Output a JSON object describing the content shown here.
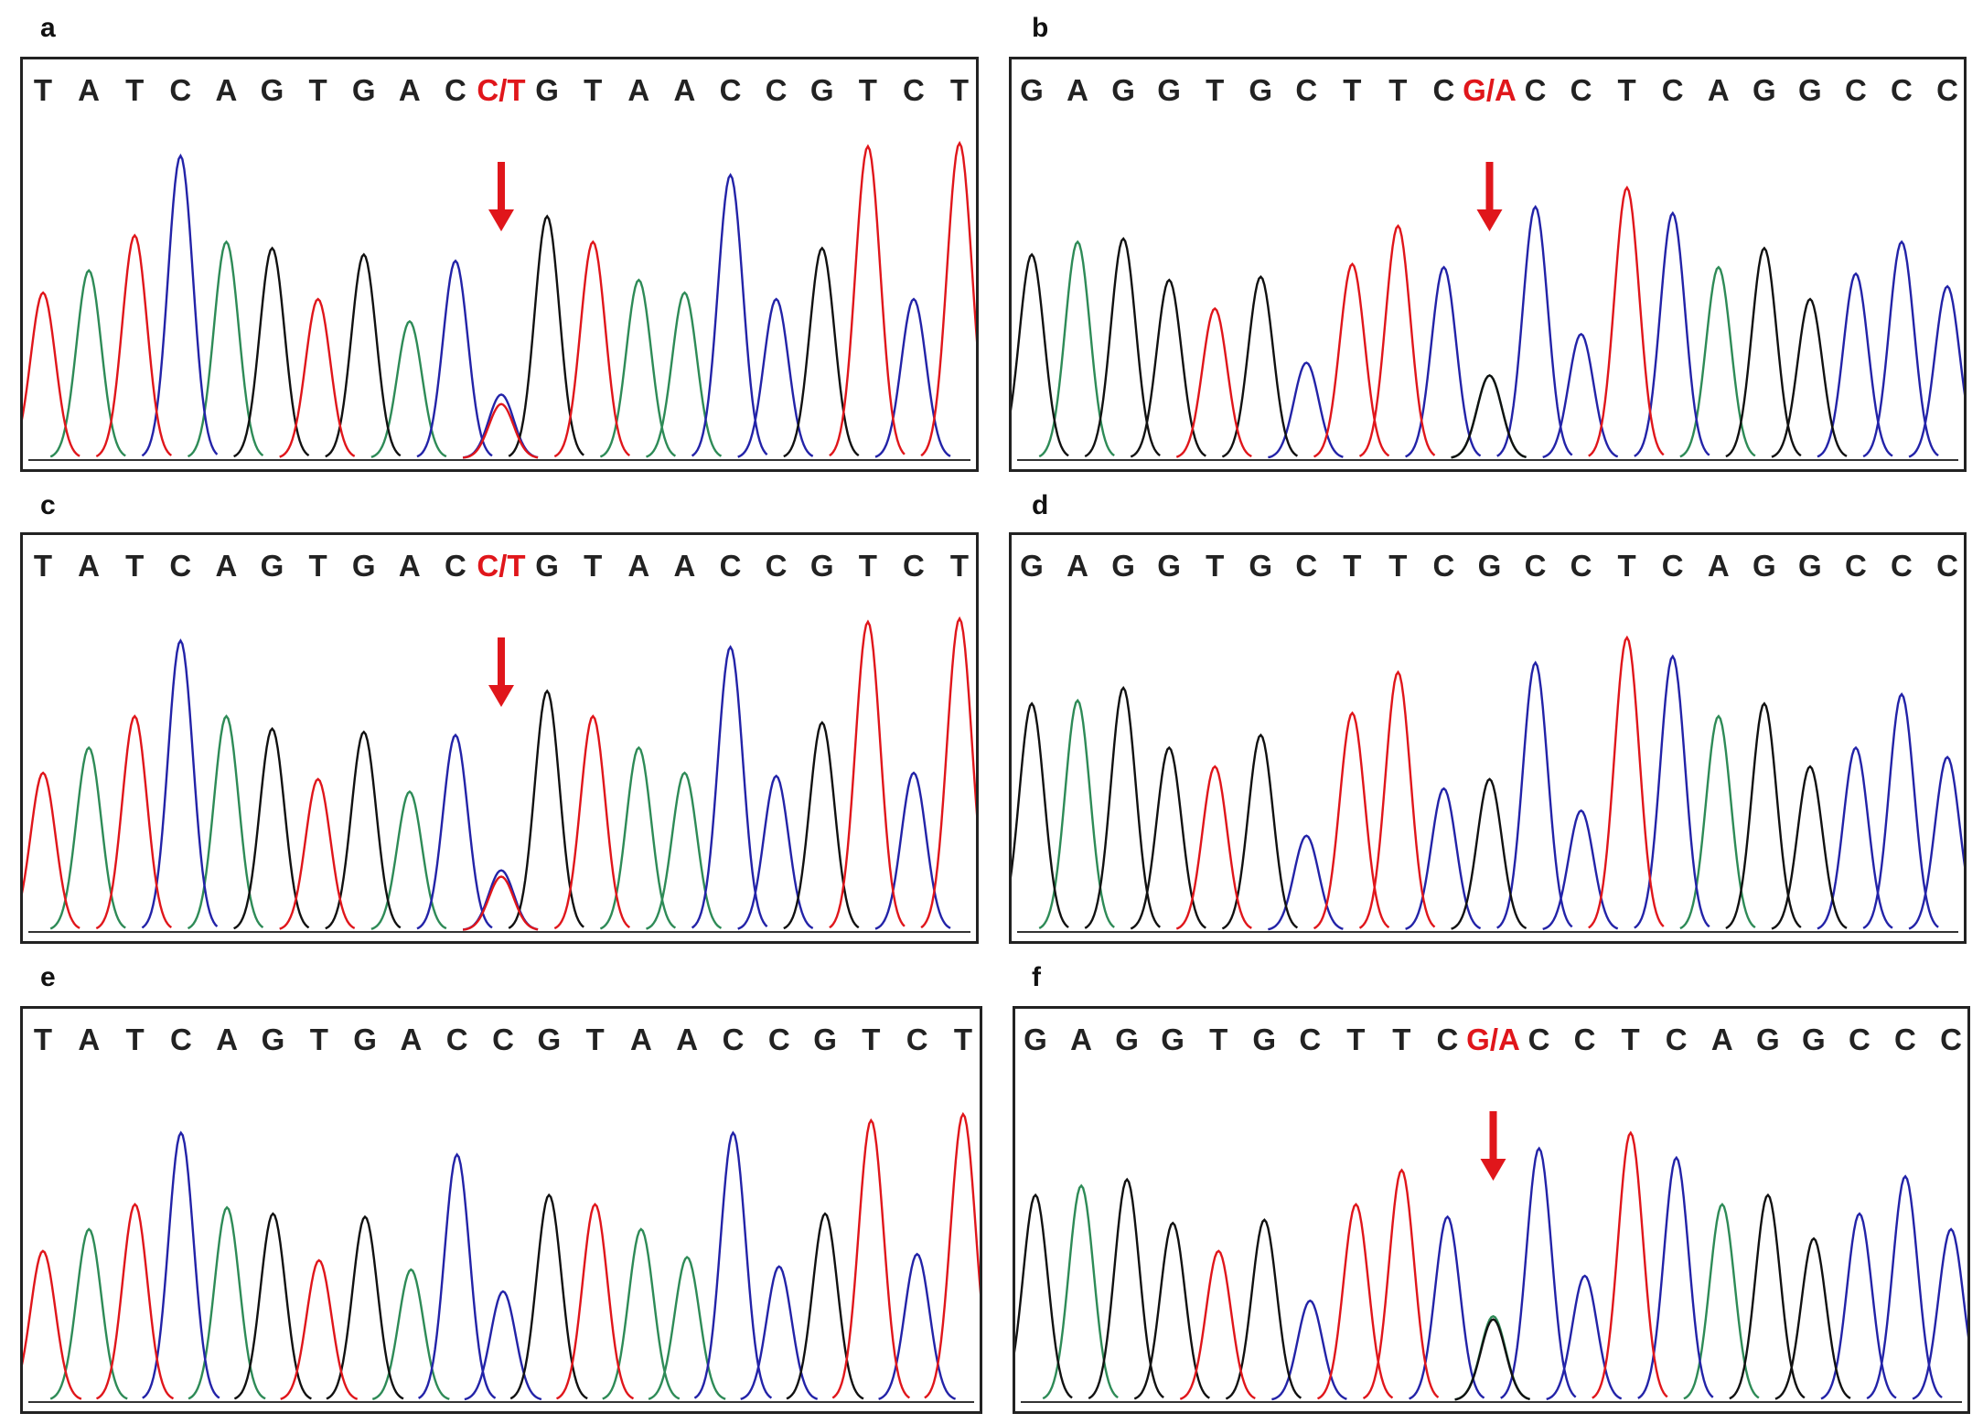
{
  "figure": {
    "panels": [
      {
        "label": "a",
        "bases": [
          "T",
          "A",
          "T",
          "C",
          "A",
          "G",
          "T",
          "G",
          "A",
          "C",
          "C/T",
          "G",
          "T",
          "A",
          "A",
          "C",
          "C",
          "G",
          "T",
          "C",
          "T"
        ],
        "het_index": 10,
        "arrow": true
      },
      {
        "label": "b",
        "bases": [
          "G",
          "A",
          "G",
          "G",
          "T",
          "G",
          "C",
          "T",
          "T",
          "C",
          "G/A",
          "C",
          "C",
          "T",
          "C",
          "A",
          "G",
          "G",
          "C",
          "C",
          "C"
        ],
        "het_index": 10,
        "arrow": true
      },
      {
        "label": "c",
        "bases": [
          "T",
          "A",
          "T",
          "C",
          "A",
          "G",
          "T",
          "G",
          "A",
          "C",
          "C/T",
          "G",
          "T",
          "A",
          "A",
          "C",
          "C",
          "G",
          "T",
          "C",
          "T"
        ],
        "het_index": 10,
        "arrow": true
      },
      {
        "label": "d",
        "bases": [
          "G",
          "A",
          "G",
          "G",
          "T",
          "G",
          "C",
          "T",
          "T",
          "C",
          "G",
          "C",
          "C",
          "T",
          "C",
          "A",
          "G",
          "G",
          "C",
          "C",
          "C"
        ],
        "het_index": -1,
        "arrow": false
      },
      {
        "label": "e",
        "bases": [
          "T",
          "A",
          "T",
          "C",
          "A",
          "G",
          "T",
          "G",
          "A",
          "C",
          "C",
          "G",
          "T",
          "A",
          "A",
          "C",
          "C",
          "G",
          "T",
          "C",
          "T"
        ],
        "het_index": -1,
        "arrow": false
      },
      {
        "label": "f",
        "bases": [
          "G",
          "A",
          "G",
          "G",
          "T",
          "G",
          "C",
          "T",
          "T",
          "C",
          "G/A",
          "C",
          "C",
          "T",
          "C",
          "A",
          "G",
          "G",
          "C",
          "C",
          "C"
        ],
        "het_index": 10,
        "arrow": true
      }
    ]
  },
  "colors": {
    "A": "#2e8b57",
    "C": "#2323a8",
    "G": "#111111",
    "T": "#e0161b",
    "highlight": "#e0161b"
  },
  "chart_data": [
    {
      "type": "chromatogram",
      "title": "a",
      "sequence": "TATCAGTGAC[C/T]GTAACCGTCT",
      "peak_heights": [
        0.52,
        0.59,
        0.7,
        0.95,
        0.68,
        0.66,
        0.5,
        0.64,
        0.43,
        0.62,
        0.2,
        0.76,
        0.68,
        0.56,
        0.52,
        0.89,
        0.5,
        0.66,
        0.98,
        0.5,
        0.99
      ],
      "secondary_heights": [
        0,
        0,
        0,
        0,
        0,
        0,
        0,
        0,
        0,
        0,
        0.17,
        0,
        0,
        0,
        0,
        0,
        0,
        0,
        0,
        0,
        0
      ]
    },
    {
      "type": "chromatogram",
      "title": "b",
      "sequence": "GAGGTGCTTC[G/A]CCTCAGGCCC",
      "peak_heights": [
        0.64,
        0.68,
        0.69,
        0.56,
        0.47,
        0.57,
        0.3,
        0.61,
        0.73,
        0.6,
        0.26,
        0.79,
        0.39,
        0.85,
        0.77,
        0.6,
        0.66,
        0.5,
        0.58,
        0.68,
        0.54
      ],
      "secondary_heights": [
        0,
        0,
        0,
        0,
        0,
        0,
        0,
        0,
        0,
        0,
        0.26,
        0,
        0,
        0,
        0,
        0,
        0,
        0,
        0,
        0,
        0
      ]
    },
    {
      "type": "chromatogram",
      "title": "c",
      "sequence": "TATCAGTGAC[C/T]GTAACCGTCT",
      "peak_heights": [
        0.5,
        0.58,
        0.68,
        0.92,
        0.68,
        0.64,
        0.48,
        0.63,
        0.44,
        0.62,
        0.19,
        0.76,
        0.68,
        0.58,
        0.5,
        0.9,
        0.49,
        0.66,
        0.98,
        0.5,
        0.99
      ],
      "secondary_heights": [
        0,
        0,
        0,
        0,
        0,
        0,
        0,
        0,
        0,
        0,
        0.17,
        0,
        0,
        0,
        0,
        0,
        0,
        0,
        0,
        0,
        0
      ]
    },
    {
      "type": "chromatogram",
      "title": "d",
      "sequence": "GAGGTGCTTCGCCTCAGGCCC",
      "peak_heights": [
        0.72,
        0.73,
        0.77,
        0.58,
        0.52,
        0.62,
        0.3,
        0.69,
        0.82,
        0.45,
        0.48,
        0.85,
        0.38,
        0.93,
        0.87,
        0.68,
        0.72,
        0.52,
        0.58,
        0.75,
        0.55
      ],
      "secondary_heights": [
        0,
        0,
        0,
        0,
        0,
        0,
        0,
        0,
        0,
        0,
        0,
        0,
        0,
        0,
        0,
        0,
        0,
        0,
        0,
        0,
        0
      ]
    },
    {
      "type": "chromatogram",
      "title": "e",
      "sequence": "TATCAGTGACCGTAACCGTCT",
      "peak_heights": [
        0.48,
        0.55,
        0.63,
        0.86,
        0.62,
        0.6,
        0.45,
        0.59,
        0.42,
        0.79,
        0.35,
        0.66,
        0.63,
        0.55,
        0.46,
        0.86,
        0.43,
        0.6,
        0.9,
        0.47,
        0.92
      ],
      "secondary_heights": [
        0,
        0,
        0,
        0,
        0,
        0,
        0,
        0,
        0,
        0,
        0,
        0,
        0,
        0,
        0,
        0,
        0,
        0,
        0,
        0,
        0
      ]
    },
    {
      "type": "chromatogram",
      "title": "f",
      "sequence": "GAGGTGCTTC[G/A]CCTCAGGCCC",
      "peak_heights": [
        0.66,
        0.69,
        0.71,
        0.57,
        0.48,
        0.58,
        0.32,
        0.63,
        0.74,
        0.59,
        0.26,
        0.81,
        0.4,
        0.86,
        0.78,
        0.63,
        0.66,
        0.52,
        0.6,
        0.72,
        0.55
      ],
      "secondary_heights": [
        0,
        0,
        0,
        0,
        0,
        0,
        0,
        0,
        0,
        0,
        0.27,
        0,
        0,
        0,
        0,
        0,
        0,
        0,
        0,
        0,
        0
      ]
    }
  ]
}
